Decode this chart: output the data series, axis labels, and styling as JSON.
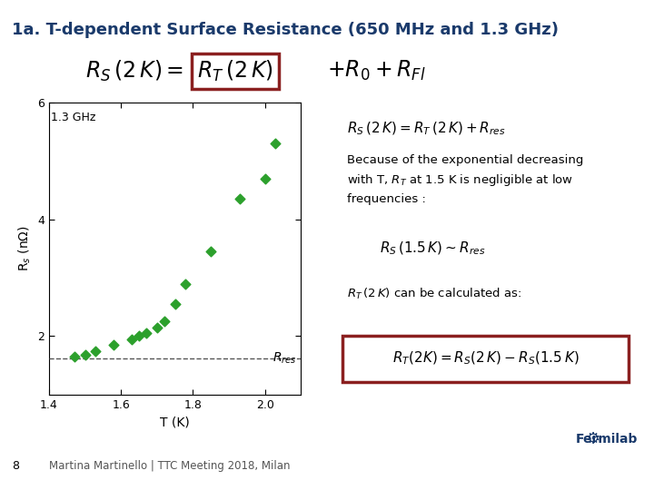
{
  "title": "1a. T-dependent Surface Resistance (650 MHz and 1.3 GHz)",
  "title_color": "#1a3a6b",
  "background_color": "#ffffff",
  "plot_label": "1.3 GHz",
  "xlabel": "T (K)",
  "ylabel": "R$_s$ (nΩ)",
  "xlim": [
    1.4,
    2.1
  ],
  "ylim": [
    1.0,
    6.0
  ],
  "xticks": [
    1.4,
    1.6,
    1.8,
    2.0
  ],
  "yticks": [
    2,
    4,
    6
  ],
  "scatter_x": [
    1.47,
    1.5,
    1.53,
    1.58,
    1.63,
    1.65,
    1.67,
    1.7,
    1.72,
    1.75,
    1.78,
    1.85,
    1.93,
    2.0,
    2.03
  ],
  "scatter_y": [
    1.65,
    1.68,
    1.75,
    1.85,
    1.95,
    2.0,
    2.05,
    2.15,
    2.25,
    2.55,
    2.9,
    3.45,
    4.35,
    4.7,
    5.3
  ],
  "scatter_color": "#2ca02c",
  "rres_y": 1.62,
  "fermilab_color": "#1a3a6b",
  "footer_text": "Martina Martinello | TTC Meeting 2018, Milan",
  "footer_number": "8",
  "header_line_color": "#4472c4",
  "footer_band_color": "#9dc3e6",
  "footer_line_color": "#1a3a6b",
  "red_box_color": "#8b2020"
}
